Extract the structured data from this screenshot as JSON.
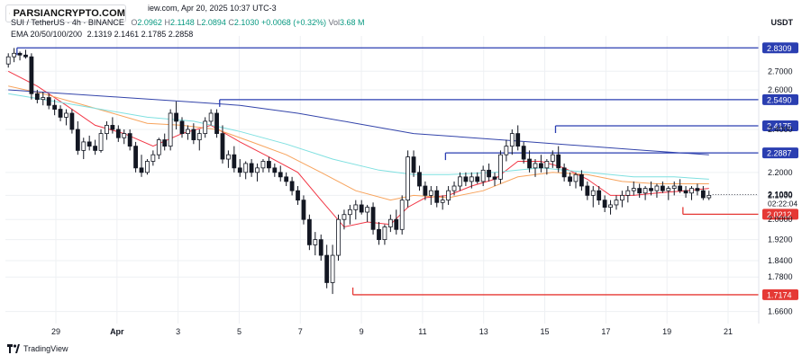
{
  "header": {
    "title": "SUI / TetherUS · 4h · BINANCE",
    "url_fragment": "iew.com,",
    "timestamp": "Apr 20, 2025 10:37 UTC-3",
    "ohlc": [
      {
        "key": "O",
        "value": "2.0962"
      },
      {
        "key": "H",
        "value": "2.1148"
      },
      {
        "key": "L",
        "value": "2.0894"
      },
      {
        "key": "C",
        "value": "2.1030"
      }
    ],
    "change": "+0.0068 (+0.32%)",
    "vol_label": "Vol",
    "vol_value": "3.68 M",
    "ema_label": "EMA 20/50/100/200",
    "ema_values": [
      {
        "value": "2.1319",
        "color": "#f23645"
      },
      {
        "value": "2.1461",
        "color": "#f7a35c"
      },
      {
        "value": "2.1785",
        "color": "#7fe0e0"
      },
      {
        "value": "2.2858",
        "color": "#3344aa"
      }
    ]
  },
  "logo": {
    "text": "PARSIANCRYPTO.COM"
  },
  "currency": "USDT",
  "branding": {
    "text": "TradingView"
  },
  "colors": {
    "up": "#089981",
    "down": "#131722",
    "candle_body_up": "#ffffff",
    "resistance": "#2a3eb1",
    "support": "#e53935",
    "ema20": "#f23645",
    "ema50": "#f7a35c",
    "ema100": "#7fe0e0",
    "ema200": "#3344aa",
    "grid": "#eef0f3",
    "price_tag": "#131722",
    "countdown": "#131722"
  },
  "chart_data": {
    "type": "candlestick",
    "symbol": "SUI / TetherUS",
    "interval": "4h",
    "exchange": "BINANCE",
    "y_axis": {
      "scale": "log",
      "ylim": [
        1.62,
        2.9
      ],
      "ticks": [
        "2.7000",
        "2.6000",
        "2.4000",
        "2.2000",
        "2.1000",
        "2.0000",
        "1.9200",
        "1.8400",
        "1.7800",
        "1.6600"
      ]
    },
    "x_axis": {
      "ticks": [
        "29",
        "Apr",
        "3",
        "5",
        "7",
        "9",
        "11",
        "13",
        "15",
        "17",
        "19",
        "21"
      ]
    },
    "current_price": "2.1030",
    "countdown": "02:22:04",
    "horizontal_levels": [
      {
        "price": 2.8309,
        "label": "2.8309",
        "kind": "resistance",
        "from_bar": 2
      },
      {
        "price": 2.549,
        "label": "2.5490",
        "kind": "resistance",
        "from_bar": 37
      },
      {
        "price": 2.4175,
        "label": "2.4175",
        "kind": "resistance",
        "from_bar": 95
      },
      {
        "price": 2.2887,
        "label": "2.2887",
        "kind": "resistance",
        "from_bar": 76
      },
      {
        "price": 2.0212,
        "label": "2.0212",
        "kind": "support",
        "from_bar": 117
      },
      {
        "price": 1.7174,
        "label": "1.7174",
        "kind": "support",
        "from_bar": 60
      }
    ],
    "candles": [
      [
        2.74,
        2.8,
        2.72,
        2.78
      ],
      [
        2.78,
        2.83,
        2.75,
        2.8
      ],
      [
        2.8,
        2.81,
        2.76,
        2.79
      ],
      [
        2.79,
        2.82,
        2.77,
        2.78
      ],
      [
        2.78,
        2.8,
        2.55,
        2.58
      ],
      [
        2.58,
        2.6,
        2.53,
        2.55
      ],
      [
        2.55,
        2.59,
        2.52,
        2.56
      ],
      [
        2.56,
        2.58,
        2.5,
        2.52
      ],
      [
        2.52,
        2.55,
        2.47,
        2.5
      ],
      [
        2.5,
        2.52,
        2.44,
        2.46
      ],
      [
        2.46,
        2.5,
        2.42,
        2.48
      ],
      [
        2.48,
        2.5,
        2.38,
        2.4
      ],
      [
        2.4,
        2.44,
        2.28,
        2.3
      ],
      [
        2.3,
        2.36,
        2.26,
        2.34
      ],
      [
        2.34,
        2.37,
        2.3,
        2.32
      ],
      [
        2.32,
        2.35,
        2.28,
        2.3
      ],
      [
        2.3,
        2.4,
        2.29,
        2.38
      ],
      [
        2.38,
        2.44,
        2.35,
        2.42
      ],
      [
        2.42,
        2.46,
        2.38,
        2.4
      ],
      [
        2.4,
        2.42,
        2.34,
        2.36
      ],
      [
        2.36,
        2.4,
        2.33,
        2.38
      ],
      [
        2.38,
        2.4,
        2.3,
        2.32
      ],
      [
        2.32,
        2.34,
        2.2,
        2.22
      ],
      [
        2.22,
        2.28,
        2.18,
        2.2
      ],
      [
        2.2,
        2.26,
        2.19,
        2.25
      ],
      [
        2.25,
        2.3,
        2.23,
        2.28
      ],
      [
        2.28,
        2.36,
        2.26,
        2.35
      ],
      [
        2.35,
        2.38,
        2.3,
        2.32
      ],
      [
        2.32,
        2.5,
        2.3,
        2.48
      ],
      [
        2.48,
        2.54,
        2.4,
        2.44
      ],
      [
        2.44,
        2.46,
        2.36,
        2.38
      ],
      [
        2.38,
        2.42,
        2.35,
        2.4
      ],
      [
        2.4,
        2.43,
        2.33,
        2.35
      ],
      [
        2.35,
        2.4,
        2.3,
        2.38
      ],
      [
        2.38,
        2.46,
        2.36,
        2.44
      ],
      [
        2.44,
        2.5,
        2.42,
        2.48
      ],
      [
        2.48,
        2.5,
        2.36,
        2.38
      ],
      [
        2.38,
        2.42,
        2.24,
        2.26
      ],
      [
        2.26,
        2.3,
        2.22,
        2.28
      ],
      [
        2.28,
        2.32,
        2.2,
        2.22
      ],
      [
        2.22,
        2.26,
        2.18,
        2.2
      ],
      [
        2.2,
        2.25,
        2.17,
        2.24
      ],
      [
        2.24,
        2.26,
        2.18,
        2.2
      ],
      [
        2.2,
        2.24,
        2.16,
        2.22
      ],
      [
        2.22,
        2.26,
        2.2,
        2.25
      ],
      [
        2.25,
        2.27,
        2.2,
        2.22
      ],
      [
        2.22,
        2.24,
        2.18,
        2.2
      ],
      [
        2.2,
        2.23,
        2.16,
        2.18
      ],
      [
        2.18,
        2.2,
        2.14,
        2.16
      ],
      [
        2.16,
        2.18,
        2.1,
        2.12
      ],
      [
        2.12,
        2.14,
        2.06,
        2.08
      ],
      [
        2.08,
        2.1,
        1.98,
        2.0
      ],
      [
        2.0,
        2.02,
        1.88,
        1.9
      ],
      [
        1.9,
        1.95,
        1.86,
        1.92
      ],
      [
        1.92,
        1.94,
        1.84,
        1.86
      ],
      [
        1.86,
        1.9,
        1.74,
        1.76
      ],
      [
        1.76,
        1.9,
        1.72,
        1.86
      ],
      [
        1.86,
        2.02,
        1.84,
        2.0
      ],
      [
        2.0,
        2.04,
        1.96,
        2.02
      ],
      [
        2.02,
        2.06,
        1.98,
        2.04
      ],
      [
        2.04,
        2.08,
        2.0,
        2.06
      ],
      [
        2.06,
        2.08,
        2.02,
        2.03
      ],
      [
        2.03,
        2.06,
        1.99,
        2.05
      ],
      [
        2.05,
        2.07,
        1.94,
        1.96
      ],
      [
        1.96,
        1.99,
        1.9,
        1.92
      ],
      [
        1.92,
        1.98,
        1.9,
        1.97
      ],
      [
        1.97,
        2.02,
        1.95,
        2.0
      ],
      [
        2.0,
        2.04,
        1.94,
        1.96
      ],
      [
        1.96,
        2.1,
        1.94,
        2.08
      ],
      [
        2.08,
        2.3,
        2.05,
        2.27
      ],
      [
        2.27,
        2.3,
        2.18,
        2.2
      ],
      [
        2.2,
        2.23,
        2.12,
        2.14
      ],
      [
        2.14,
        2.16,
        2.08,
        2.1
      ],
      [
        2.1,
        2.14,
        2.06,
        2.12
      ],
      [
        2.12,
        2.14,
        2.05,
        2.07
      ],
      [
        2.07,
        2.1,
        2.04,
        2.08
      ],
      [
        2.08,
        2.14,
        2.06,
        2.12
      ],
      [
        2.12,
        2.16,
        2.1,
        2.14
      ],
      [
        2.14,
        2.2,
        2.12,
        2.18
      ],
      [
        2.18,
        2.2,
        2.14,
        2.16
      ],
      [
        2.16,
        2.2,
        2.13,
        2.18
      ],
      [
        2.18,
        2.2,
        2.15,
        2.16
      ],
      [
        2.16,
        2.23,
        2.14,
        2.21
      ],
      [
        2.21,
        2.24,
        2.16,
        2.18
      ],
      [
        2.18,
        2.2,
        2.14,
        2.17
      ],
      [
        2.17,
        2.3,
        2.15,
        2.28
      ],
      [
        2.28,
        2.35,
        2.25,
        2.32
      ],
      [
        2.32,
        2.4,
        2.28,
        2.38
      ],
      [
        2.38,
        2.42,
        2.3,
        2.32
      ],
      [
        2.32,
        2.34,
        2.24,
        2.26
      ],
      [
        2.26,
        2.3,
        2.2,
        2.22
      ],
      [
        2.22,
        2.26,
        2.18,
        2.24
      ],
      [
        2.24,
        2.28,
        2.2,
        2.22
      ],
      [
        2.22,
        2.26,
        2.19,
        2.25
      ],
      [
        2.25,
        2.3,
        2.22,
        2.28
      ],
      [
        2.28,
        2.32,
        2.2,
        2.22
      ],
      [
        2.22,
        2.24,
        2.16,
        2.18
      ],
      [
        2.18,
        2.2,
        2.14,
        2.16
      ],
      [
        2.16,
        2.2,
        2.13,
        2.19
      ],
      [
        2.19,
        2.21,
        2.12,
        2.14
      ],
      [
        2.14,
        2.16,
        2.08,
        2.1
      ],
      [
        2.1,
        2.14,
        2.05,
        2.12
      ],
      [
        2.12,
        2.14,
        2.06,
        2.08
      ],
      [
        2.08,
        2.1,
        2.03,
        2.05
      ],
      [
        2.05,
        2.08,
        2.02,
        2.06
      ],
      [
        2.06,
        2.1,
        2.04,
        2.08
      ],
      [
        2.08,
        2.12,
        2.05,
        2.1
      ],
      [
        2.1,
        2.14,
        2.07,
        2.12
      ],
      [
        2.12,
        2.16,
        2.1,
        2.13
      ],
      [
        2.13,
        2.15,
        2.09,
        2.11
      ],
      [
        2.11,
        2.14,
        2.08,
        2.13
      ],
      [
        2.13,
        2.16,
        2.1,
        2.12
      ],
      [
        2.12,
        2.15,
        2.09,
        2.14
      ],
      [
        2.14,
        2.16,
        2.11,
        2.12
      ],
      [
        2.12,
        2.14,
        2.08,
        2.13
      ],
      [
        2.13,
        2.16,
        2.1,
        2.14
      ],
      [
        2.14,
        2.17,
        2.11,
        2.12
      ],
      [
        2.12,
        2.14,
        2.09,
        2.11
      ],
      [
        2.11,
        2.14,
        2.08,
        2.13
      ],
      [
        2.13,
        2.15,
        2.1,
        2.12
      ],
      [
        2.12,
        2.14,
        2.08,
        2.09
      ],
      [
        2.09,
        2.12,
        2.08,
        2.1
      ]
    ],
    "emas": [
      {
        "name": "EMA 20",
        "color": "#f23645",
        "points": [
          [
            0,
            2.7
          ],
          [
            5,
            2.62
          ],
          [
            10,
            2.52
          ],
          [
            15,
            2.42
          ],
          [
            20,
            2.38
          ],
          [
            25,
            2.32
          ],
          [
            30,
            2.38
          ],
          [
            35,
            2.42
          ],
          [
            40,
            2.34
          ],
          [
            45,
            2.27
          ],
          [
            50,
            2.2
          ],
          [
            54,
            2.08
          ],
          [
            58,
            1.97
          ],
          [
            62,
            1.99
          ],
          [
            66,
            1.98
          ],
          [
            69,
            2.05
          ],
          [
            72,
            2.09
          ],
          [
            76,
            2.1
          ],
          [
            80,
            2.14
          ],
          [
            84,
            2.17
          ],
          [
            88,
            2.25
          ],
          [
            92,
            2.25
          ],
          [
            96,
            2.22
          ],
          [
            100,
            2.17
          ],
          [
            104,
            2.1
          ],
          [
            108,
            2.1
          ],
          [
            112,
            2.11
          ],
          [
            117,
            2.12
          ],
          [
            121,
            2.13
          ]
        ]
      },
      {
        "name": "EMA 50",
        "color": "#f7a35c",
        "points": [
          [
            0,
            2.62
          ],
          [
            6,
            2.58
          ],
          [
            12,
            2.53
          ],
          [
            18,
            2.48
          ],
          [
            24,
            2.43
          ],
          [
            30,
            2.42
          ],
          [
            36,
            2.4
          ],
          [
            42,
            2.34
          ],
          [
            48,
            2.28
          ],
          [
            54,
            2.2
          ],
          [
            60,
            2.12
          ],
          [
            66,
            2.08
          ],
          [
            70,
            2.1
          ],
          [
            76,
            2.09
          ],
          [
            82,
            2.12
          ],
          [
            88,
            2.18
          ],
          [
            94,
            2.2
          ],
          [
            100,
            2.19
          ],
          [
            106,
            2.16
          ],
          [
            112,
            2.15
          ],
          [
            117,
            2.15
          ],
          [
            121,
            2.15
          ]
        ]
      },
      {
        "name": "EMA 100",
        "color": "#7fe0e0",
        "points": [
          [
            0,
            2.58
          ],
          [
            8,
            2.54
          ],
          [
            16,
            2.5
          ],
          [
            24,
            2.46
          ],
          [
            32,
            2.44
          ],
          [
            40,
            2.39
          ],
          [
            48,
            2.33
          ],
          [
            56,
            2.26
          ],
          [
            64,
            2.21
          ],
          [
            70,
            2.19
          ],
          [
            76,
            2.19
          ],
          [
            84,
            2.2
          ],
          [
            92,
            2.22
          ],
          [
            100,
            2.2
          ],
          [
            108,
            2.18
          ],
          [
            115,
            2.18
          ],
          [
            121,
            2.17
          ]
        ]
      },
      {
        "name": "EMA 200",
        "color": "#3344aa",
        "points": [
          [
            0,
            2.6
          ],
          [
            10,
            2.58
          ],
          [
            20,
            2.56
          ],
          [
            30,
            2.54
          ],
          [
            40,
            2.52
          ],
          [
            50,
            2.48
          ],
          [
            60,
            2.43
          ],
          [
            70,
            2.38
          ],
          [
            80,
            2.36
          ],
          [
            90,
            2.34
          ],
          [
            100,
            2.32
          ],
          [
            110,
            2.3
          ],
          [
            121,
            2.28
          ]
        ]
      }
    ]
  }
}
